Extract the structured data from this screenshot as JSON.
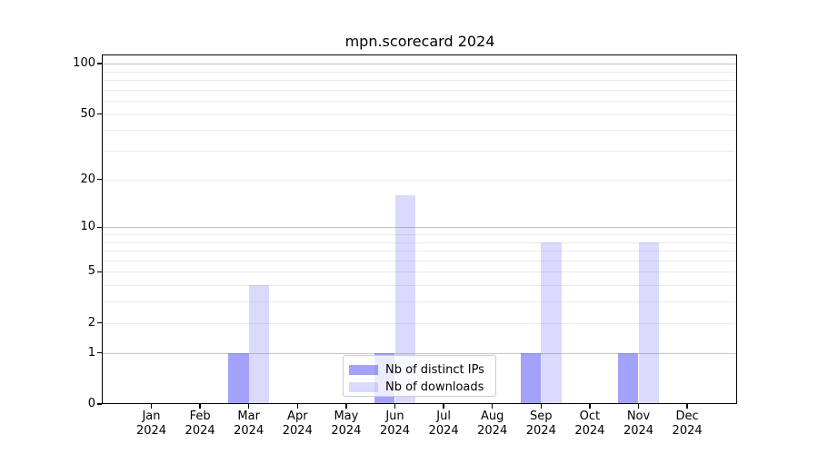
{
  "figure": {
    "title": "mpn.scorecard 2024"
  },
  "legend": {
    "items": [
      {
        "label": "Nb of distinct IPs",
        "color": "rgba(85,85,245,0.55)"
      },
      {
        "label": "Nb of downloads",
        "color": "rgba(85,85,245,0.22)"
      }
    ]
  },
  "chart_data": {
    "type": "bar",
    "title": "mpn.scorecard 2024",
    "categories": [
      "Jan",
      "Feb",
      "Mar",
      "Apr",
      "May",
      "Jun",
      "Jul",
      "Aug",
      "Sep",
      "Oct",
      "Nov",
      "Dec"
    ],
    "x_tick_year": "2024",
    "series": [
      {
        "name": "Nb of distinct IPs",
        "color": "rgba(85,85,245,0.55)",
        "values": [
          0,
          0,
          1,
          0,
          0,
          1,
          0,
          0,
          1,
          0,
          1,
          0
        ]
      },
      {
        "name": "Nb of downloads",
        "color": "rgba(85,85,245,0.22)",
        "values": [
          0,
          0,
          4,
          0,
          0,
          16,
          0,
          0,
          8,
          0,
          8,
          0
        ]
      }
    ],
    "y_ticks": [
      0,
      1,
      2,
      5,
      10,
      20,
      50,
      100
    ],
    "y_minor_gridlines": [
      2,
      3,
      4,
      5,
      6,
      7,
      8,
      9,
      20,
      30,
      40,
      50,
      60,
      70,
      80,
      90
    ],
    "y_major_gridlines": [
      1,
      10,
      100
    ],
    "y_scale": "log1p",
    "ylim": [
      0,
      113
    ],
    "xlabel": "",
    "ylabel": "",
    "grid": "horizontal",
    "legend_position": "lower-center-inside"
  }
}
